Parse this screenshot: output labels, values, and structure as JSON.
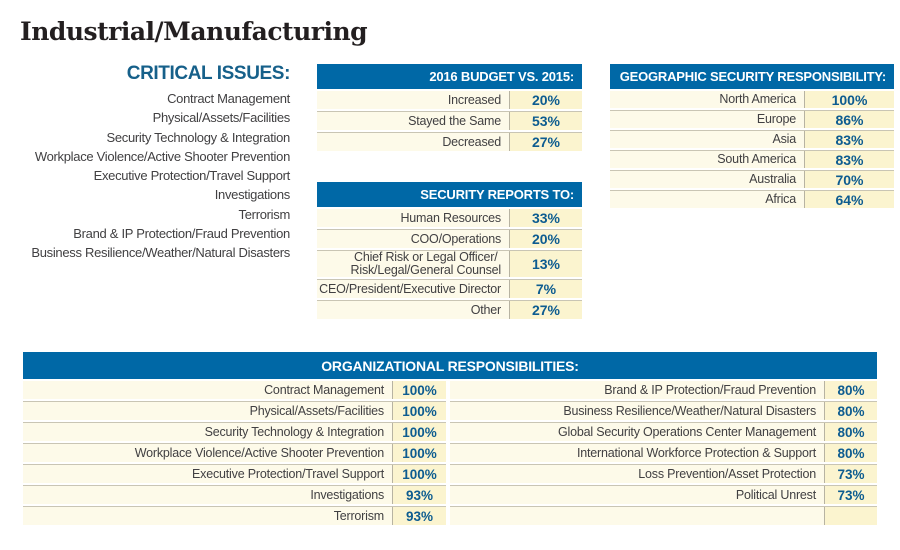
{
  "page_title": "Industrial/Manufacturing",
  "colors": {
    "header_blue": "#0068a6",
    "value_blue": "#0d5c90",
    "critical_heading_blue": "#16608a",
    "label_gray": "#414042",
    "row_cream": "#fdfae9",
    "value_cell_yellow": "#fbf4cf"
  },
  "critical_issues": {
    "heading": "CRITICAL ISSUES:",
    "items": [
      "Contract Management",
      "Physical/Assets/Facilities",
      "Security Technology & Integration",
      "Workplace Violence/Active Shooter Prevention",
      "Executive Protection/Travel Support",
      "Investigations",
      "Terrorism",
      "Brand & IP Protection/Fraud Prevention",
      "Business Resilience/Weather/Natural Disasters"
    ]
  },
  "tables": {
    "budget": {
      "title": "2016 BUDGET VS. 2015:",
      "rows": [
        {
          "label": "Increased",
          "value": "20%"
        },
        {
          "label": "Stayed the Same",
          "value": "53%"
        },
        {
          "label": "Decreased",
          "value": "27%"
        }
      ]
    },
    "security_reports": {
      "title": "SECURITY REPORTS TO:",
      "rows": [
        {
          "label": "Human Resources",
          "value": "33%"
        },
        {
          "label": "COO/Operations",
          "value": "20%"
        },
        {
          "label": "Chief Risk or Legal Officer/\nRisk/Legal/General Counsel",
          "value": "13%"
        },
        {
          "label": "CEO/President/Executive Director",
          "value": "7%"
        },
        {
          "label": "Other",
          "value": "27%"
        }
      ]
    },
    "geographic": {
      "title": "GEOGRAPHIC SECURITY RESPONSIBILITY:",
      "rows": [
        {
          "label": "North America",
          "value": "100%"
        },
        {
          "label": "Europe",
          "value": "86%"
        },
        {
          "label": "Asia",
          "value": "83%"
        },
        {
          "label": "South America",
          "value": "83%"
        },
        {
          "label": "Australia",
          "value": "70%"
        },
        {
          "label": "Africa",
          "value": "64%"
        }
      ]
    },
    "organizational": {
      "title": "ORGANIZATIONAL RESPONSIBILITIES:",
      "left_rows": [
        {
          "label": "Contract Management",
          "value": "100%"
        },
        {
          "label": "Physical/Assets/Facilities",
          "value": "100%"
        },
        {
          "label": "Security Technology & Integration",
          "value": "100%"
        },
        {
          "label": "Workplace Violence/Active Shooter Prevention",
          "value": "100%"
        },
        {
          "label": "Executive Protection/Travel Support",
          "value": "100%"
        },
        {
          "label": "Investigations",
          "value": "93%"
        },
        {
          "label": "Terrorism",
          "value": "93%"
        }
      ],
      "right_rows": [
        {
          "label": "Brand & IP Protection/Fraud Prevention",
          "value": "80%"
        },
        {
          "label": "Business Resilience/Weather/Natural Disasters",
          "value": "80%"
        },
        {
          "label": "Global Security Operations Center Management",
          "value": "80%"
        },
        {
          "label": "International Workforce Protection & Support",
          "value": "80%"
        },
        {
          "label": "Loss Prevention/Asset Protection",
          "value": "73%"
        },
        {
          "label": "Political Unrest",
          "value": "73%"
        },
        {
          "label": "",
          "value": ""
        }
      ]
    }
  },
  "chart_data": [
    {
      "type": "table",
      "title": "2016 BUDGET VS. 2015:",
      "categories": [
        "Increased",
        "Stayed the Same",
        "Decreased"
      ],
      "values": [
        20,
        53,
        27
      ],
      "unit": "%"
    },
    {
      "type": "table",
      "title": "SECURITY REPORTS TO:",
      "categories": [
        "Human Resources",
        "COO/Operations",
        "Chief Risk or Legal Officer/Risk/Legal/General Counsel",
        "CEO/President/Executive Director",
        "Other"
      ],
      "values": [
        33,
        20,
        13,
        7,
        27
      ],
      "unit": "%"
    },
    {
      "type": "table",
      "title": "GEOGRAPHIC SECURITY RESPONSIBILITY:",
      "categories": [
        "North America",
        "Europe",
        "Asia",
        "South America",
        "Australia",
        "Africa"
      ],
      "values": [
        100,
        86,
        83,
        83,
        70,
        64
      ],
      "unit": "%"
    },
    {
      "type": "table",
      "title": "ORGANIZATIONAL RESPONSIBILITIES:",
      "categories": [
        "Contract Management",
        "Physical/Assets/Facilities",
        "Security Technology & Integration",
        "Workplace Violence/Active Shooter Prevention",
        "Executive Protection/Travel Support",
        "Investigations",
        "Terrorism",
        "Brand & IP Protection/Fraud Prevention",
        "Business Resilience/Weather/Natural Disasters",
        "Global Security Operations Center Management",
        "International Workforce Protection & Support",
        "Loss Prevention/Asset Protection",
        "Political Unrest"
      ],
      "values": [
        100,
        100,
        100,
        100,
        100,
        93,
        93,
        80,
        80,
        80,
        80,
        73,
        73
      ],
      "unit": "%"
    }
  ]
}
